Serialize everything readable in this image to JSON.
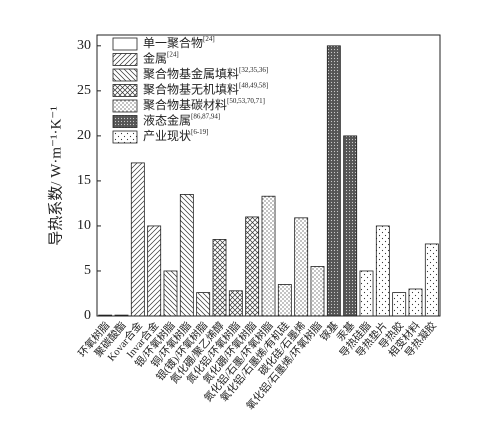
{
  "chart_data": {
    "type": "bar",
    "y_label": "导热系数/ W·m⁻¹·K⁻¹",
    "categories": [
      "环氧树脂",
      "聚碳酸酯",
      "Kovar合金",
      "Invar合金",
      "银/环氧树脂",
      "铜/环氧树脂",
      "银(镀)/环氧树脂",
      "氮化硼/聚乙烯醇",
      "氮化铝/环氧树脂",
      "氮化硼/环氧树脂",
      "氮化铝/石墨/环氧树脂",
      "氧化铝/石墨烯/有机硅",
      "碳化硅/石墨烯",
      "氧化铝/石墨烯/环氧树脂",
      "镓基",
      "汞基",
      "导热硅脂",
      "导热垫片",
      "导热胶",
      "相变材料",
      "导热凝胶"
    ],
    "series": [
      {
        "name": "单一聚合物",
        "ref": "[24]",
        "pattern": "blank",
        "values": [
          0.1,
          0.1,
          null,
          null,
          null,
          null,
          null,
          null,
          null,
          null,
          null,
          null,
          null,
          null,
          null,
          null,
          null,
          null,
          null,
          null,
          null
        ]
      },
      {
        "name": "金属",
        "ref": "[24]",
        "pattern": "forward",
        "values": [
          null,
          null,
          17,
          10,
          null,
          null,
          null,
          null,
          null,
          null,
          null,
          null,
          null,
          null,
          null,
          null,
          null,
          null,
          null,
          null,
          null
        ]
      },
      {
        "name": "聚合物基金属填料",
        "ref": "[32,35,36]",
        "pattern": "back",
        "values": [
          null,
          null,
          null,
          null,
          5,
          13.5,
          2.6,
          null,
          null,
          null,
          null,
          null,
          null,
          null,
          null,
          null,
          null,
          null,
          null,
          null,
          null
        ]
      },
      {
        "name": "聚合物基无机填料",
        "ref": "[48,49,58]",
        "pattern": "cross",
        "values": [
          null,
          null,
          null,
          null,
          null,
          null,
          null,
          8.5,
          2.8,
          11,
          null,
          null,
          null,
          null,
          null,
          null,
          null,
          null,
          null,
          null,
          null
        ]
      },
      {
        "name": "聚合物基碳材料",
        "ref": "[50,53,70,71]",
        "pattern": "dots",
        "values": [
          null,
          null,
          null,
          null,
          null,
          null,
          null,
          null,
          null,
          null,
          13.3,
          3.5,
          10.9,
          5.5,
          null,
          null,
          null,
          null,
          null,
          null,
          null
        ]
      },
      {
        "name": "液态金属",
        "ref": "[86,87,94]",
        "pattern": "dark",
        "values": [
          null,
          null,
          null,
          null,
          null,
          null,
          null,
          null,
          null,
          null,
          null,
          null,
          null,
          null,
          30,
          20,
          null,
          null,
          null,
          null,
          null
        ]
      },
      {
        "name": "产业现状",
        "ref": "[6-19]",
        "pattern": "sparse",
        "values": [
          null,
          null,
          null,
          null,
          null,
          null,
          null,
          null,
          null,
          null,
          null,
          null,
          null,
          null,
          null,
          null,
          5,
          10,
          2.6,
          3,
          8
        ]
      }
    ],
    "ylim": [
      0,
      31.2
    ],
    "yticks": [
      0,
      5,
      10,
      15,
      20,
      25,
      30
    ],
    "legend": "upper-left"
  }
}
